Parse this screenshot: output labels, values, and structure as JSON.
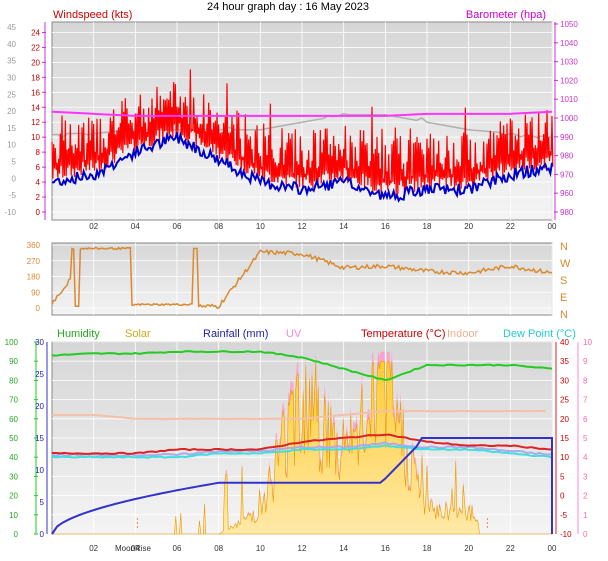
{
  "title": "24 hour graph day : 16 May 2023",
  "x_ticks": [
    "02",
    "04",
    "06",
    "08",
    "10",
    "12",
    "14",
    "16",
    "18",
    "20",
    "22",
    "00"
  ],
  "moon_label": "MoonRise",
  "wind_panel": {
    "left_label": "Windspeed (kts)",
    "right_label": "Barometer (hpa)",
    "left_axis_outer": [
      "45",
      "40",
      "35",
      "30",
      "25",
      "20",
      "15",
      "10",
      "5",
      "0",
      "-5",
      "-10"
    ],
    "left_axis_inner": [
      "24",
      "22",
      "20",
      "18",
      "16",
      "14",
      "12",
      "10",
      "8",
      "6",
      "4",
      "2",
      "0"
    ],
    "right_axis": [
      "1050",
      "1040",
      "1030",
      "1020",
      "1010",
      "1000",
      "990",
      "980",
      "970",
      "960",
      "980"
    ],
    "colors": {
      "gust": "#ff0000",
      "avg": "#0000cc",
      "baro": "#ff33ff",
      "baro_grey": "#b0b0b0"
    }
  },
  "dir_panel": {
    "left_axis": [
      "360",
      "270",
      "180",
      "90",
      "0"
    ],
    "right_axis": [
      "N",
      "W",
      "S",
      "E",
      "N"
    ],
    "color": "#d98a30"
  },
  "env_panel": {
    "legend": {
      "humidity": "Humidity",
      "solar": "Solar",
      "rainfall": "Rainfall (mm)",
      "uv": "UV",
      "temperature": "Temperature (°C)",
      "indoor": "Indoor",
      "dewpoint": "Dew Point (°C)"
    },
    "left_axis_outer": [
      "100",
      "90",
      "80",
      "70",
      "60",
      "50",
      "40",
      "30",
      "20",
      "10",
      "0"
    ],
    "left_axis_inner": [
      "30",
      "25",
      "20",
      "15",
      "10",
      "5",
      "0"
    ],
    "right_axis_inner": [
      "40",
      "35",
      "30",
      "25",
      "20",
      "15",
      "10",
      "5",
      "0",
      "-5",
      "-10"
    ],
    "right_axis_outer": [
      "10",
      "9",
      "8",
      "7",
      "6",
      "5",
      "4",
      "3",
      "2",
      "1",
      "0"
    ],
    "colors": {
      "humidity": "#22cc22",
      "solar": "#ffcc44",
      "rainfall": "#3333cc",
      "uv": "#ff88cc",
      "temperature": "#dd2222",
      "indoor": "#f5c0a8",
      "dewpoint": "#44dddd",
      "temp_lilac": "#aaaaee"
    }
  },
  "chart_data": [
    {
      "type": "line",
      "title": "24 hour graph day : 16 May 2023",
      "xlabel": "",
      "x": [
        "00",
        "02",
        "04",
        "06",
        "08",
        "10",
        "12",
        "14",
        "16",
        "18",
        "20",
        "22",
        "00"
      ],
      "series": [
        {
          "name": "Windspeed (kts)",
          "axis": "kts",
          "values": [
            4,
            5,
            8,
            10,
            7,
            4,
            3,
            4,
            2,
            3,
            3,
            5,
            6
          ]
        },
        {
          "name": "Barometer (hpa)",
          "axis": "hpa",
          "values": [
            1008,
            1007,
            1006,
            1006,
            1006,
            1006,
            1006,
            1006,
            1006,
            1007,
            1007,
            1007,
            1008
          ]
        }
      ],
      "ylim_kts": [
        0,
        25
      ],
      "ylim_hpa": [
        960,
        1050
      ]
    },
    {
      "type": "line",
      "xlabel": "",
      "x": [
        "00",
        "02",
        "04",
        "06",
        "08",
        "10",
        "12",
        "14",
        "16",
        "18",
        "20",
        "22",
        "00"
      ],
      "series": [
        {
          "name": "Wind direction",
          "values": [
            30,
            330,
            330,
            10,
            10,
            320,
            310,
            230,
            240,
            210,
            200,
            240,
            200
          ]
        }
      ],
      "ylim": [
        0,
        360
      ]
    },
    {
      "type": "line",
      "x": [
        "00",
        "02",
        "04",
        "06",
        "08",
        "10",
        "12",
        "14",
        "16",
        "18",
        "20",
        "22",
        "00"
      ],
      "series": [
        {
          "name": "Humidity",
          "axis": "%",
          "values": [
            93,
            94,
            94,
            95,
            95,
            95,
            92,
            86,
            80,
            88,
            88,
            88,
            86
          ]
        },
        {
          "name": "Rainfall (mm)",
          "axis": "mm",
          "values": [
            0,
            5,
            7,
            8,
            8,
            8,
            8,
            8,
            8,
            15,
            15,
            15,
            15
          ]
        },
        {
          "name": "Temperature (°C)",
          "axis": "C",
          "values": [
            11,
            11,
            11,
            12,
            12,
            12,
            14,
            15,
            16,
            14,
            13,
            13,
            12
          ]
        },
        {
          "name": "Indoor",
          "axis": "C",
          "values": [
            21,
            21,
            20,
            20,
            20,
            20,
            20,
            21,
            22,
            22,
            22,
            22,
            22
          ]
        },
        {
          "name": "Dew Point (°C)",
          "axis": "C",
          "values": [
            10,
            10,
            10,
            10,
            11,
            11,
            12,
            12,
            13,
            12,
            12,
            11,
            10
          ]
        },
        {
          "name": "Solar",
          "axis": "UV",
          "values": [
            0,
            0,
            0,
            0,
            0,
            1,
            6,
            3,
            6,
            1,
            1,
            0,
            0
          ]
        }
      ],
      "ylim_percent": [
        0,
        100
      ],
      "ylim_mm": [
        0,
        30
      ],
      "ylim_c": [
        -10,
        40
      ],
      "ylim_uv": [
        0,
        10
      ]
    }
  ]
}
